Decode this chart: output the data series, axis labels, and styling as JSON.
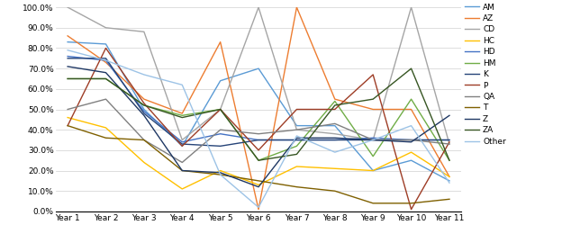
{
  "years": [
    "Year 1",
    "Year 2",
    "Year 3",
    "Year 4",
    "Year 5",
    "Year 6",
    "Year 7",
    "Year 8",
    "Year 9",
    "Year 10",
    "Year 11"
  ],
  "series": {
    "AM": [
      0.83,
      0.82,
      0.5,
      0.32,
      0.64,
      0.7,
      0.42,
      0.42,
      0.2,
      0.25,
      0.15
    ],
    "AZ": [
      0.86,
      0.73,
      0.55,
      0.48,
      0.83,
      0.01,
      1.0,
      0.55,
      0.5,
      0.5,
      0.17
    ],
    "CD": [
      1.0,
      0.9,
      0.88,
      0.35,
      0.5,
      1.0,
      0.4,
      0.38,
      0.35,
      1.0,
      0.33
    ],
    "HC": [
      0.46,
      0.41,
      0.24,
      0.11,
      0.2,
      0.13,
      0.22,
      0.21,
      0.2,
      0.29,
      0.17
    ],
    "HD": [
      0.76,
      0.74,
      0.49,
      0.34,
      0.38,
      0.35,
      0.35,
      0.35,
      0.36,
      0.35,
      0.35
    ],
    "HM": [
      0.65,
      0.65,
      0.52,
      0.47,
      0.5,
      0.25,
      0.32,
      0.54,
      0.27,
      0.55,
      0.25
    ],
    "K": [
      0.75,
      0.75,
      0.48,
      0.33,
      0.32,
      0.35,
      0.35,
      0.35,
      0.35,
      0.35,
      0.35
    ],
    "P": [
      0.42,
      0.8,
      0.53,
      0.32,
      0.5,
      0.3,
      0.5,
      0.5,
      0.67,
      0.01,
      0.34
    ],
    "QA": [
      0.5,
      0.55,
      0.35,
      0.24,
      0.4,
      0.38,
      0.4,
      0.43,
      0.35,
      0.35,
      0.33
    ],
    "T": [
      0.42,
      0.36,
      0.35,
      0.2,
      0.18,
      0.15,
      0.12,
      0.1,
      0.04,
      0.04,
      0.06
    ],
    "Z": [
      0.71,
      0.68,
      0.47,
      0.2,
      0.19,
      0.12,
      0.36,
      0.36,
      0.35,
      0.34,
      0.47
    ],
    "ZA": [
      0.65,
      0.65,
      0.52,
      0.46,
      0.5,
      0.25,
      0.28,
      0.52,
      0.55,
      0.7,
      0.25
    ],
    "Other": [
      0.79,
      0.74,
      0.67,
      0.62,
      0.18,
      0.02,
      0.37,
      0.29,
      0.35,
      0.42,
      0.14
    ]
  },
  "colors": {
    "AM": "#5B9BD5",
    "AZ": "#ED7D31",
    "CD": "#A5A5A5",
    "HC": "#FFC000",
    "HD": "#4472C4",
    "HM": "#70AD47",
    "K": "#264478",
    "P": "#9E3D26",
    "QA": "#808080",
    "T": "#7F6000",
    "Z": "#1F3864",
    "ZA": "#375623",
    "Other": "#9DC3E6"
  },
  "ylim": [
    0.0,
    1.0
  ],
  "yticks": [
    0.0,
    0.1,
    0.2,
    0.3,
    0.4,
    0.5,
    0.6,
    0.7,
    0.8,
    0.9,
    1.0
  ],
  "yticklabels": [
    "0.0%",
    "10.0%",
    "20.0%",
    "30.0%",
    "40.0%",
    "50.0%",
    "60.0%",
    "70.0%",
    "80.0%",
    "90.0%",
    "100.0%"
  ],
  "figsize": [
    6.24,
    2.7
  ],
  "dpi": 100,
  "linewidth": 1.0,
  "tick_fontsize": 6.5,
  "legend_fontsize": 6.5,
  "legend_labelspacing": 0.38,
  "legend_handlelength": 1.8
}
